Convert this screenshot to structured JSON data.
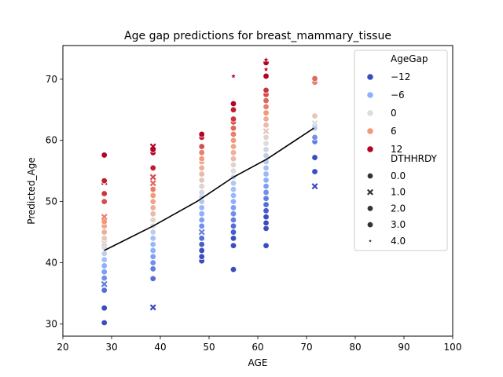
{
  "chart_data": {
    "type": "scatter",
    "title": "Age gap predictions for breast_mammary_tissue",
    "xlabel": "AGE",
    "ylabel": "Predicted_Age",
    "xlim": [
      20,
      100
    ],
    "ylim": [
      28,
      75.5
    ],
    "xticks": [
      "20",
      "30",
      "40",
      "50",
      "60",
      "70",
      "80",
      "90",
      "100"
    ],
    "yticks": [
      "30",
      "40",
      "50",
      "60",
      "70"
    ],
    "hue": {
      "title": "AgeGap",
      "entries": [
        {
          "label": "−12",
          "color": "#3b4cc0"
        },
        {
          "label": "−6",
          "color": "#8db0fe"
        },
        {
          "label": "0",
          "color": "#dddddd"
        },
        {
          "label": "6",
          "color": "#f4987a"
        },
        {
          "label": "12",
          "color": "#b40426"
        }
      ]
    },
    "style": {
      "title": "DTHHRDY",
      "entries": [
        {
          "label": "0.0",
          "marker": "circle"
        },
        {
          "label": "1.0",
          "marker": "x"
        },
        {
          "label": "2.0",
          "marker": "square"
        },
        {
          "label": "3.0",
          "marker": "plus"
        },
        {
          "label": "4.0",
          "marker": "star"
        }
      ]
    },
    "legend_position": "top-right",
    "trend_line": {
      "x": [
        28.5,
        38.5,
        47.5,
        55,
        62,
        71.5
      ],
      "y": [
        42,
        46,
        50,
        54,
        57,
        62
      ]
    },
    "points": [
      {
        "x": 28.5,
        "y": 30.2,
        "gap": -14,
        "m": 0
      },
      {
        "x": 28.5,
        "y": 32.6,
        "gap": -13,
        "m": 0
      },
      {
        "x": 28.5,
        "y": 35.5,
        "gap": -10,
        "m": 0
      },
      {
        "x": 28.5,
        "y": 36.5,
        "gap": -9,
        "m": 1
      },
      {
        "x": 28.5,
        "y": 37.5,
        "gap": -8,
        "m": 0
      },
      {
        "x": 28.5,
        "y": 38.5,
        "gap": -7,
        "m": 0
      },
      {
        "x": 28.5,
        "y": 39.5,
        "gap": -6,
        "m": 0
      },
      {
        "x": 28.5,
        "y": 40.5,
        "gap": -4,
        "m": 0
      },
      {
        "x": 28.5,
        "y": 41.5,
        "gap": -2,
        "m": 0
      },
      {
        "x": 28.5,
        "y": 42.5,
        "gap": 0,
        "m": 0
      },
      {
        "x": 28.5,
        "y": 43.2,
        "gap": 1,
        "m": 1
      },
      {
        "x": 28.5,
        "y": 44,
        "gap": 2,
        "m": 0
      },
      {
        "x": 28.5,
        "y": 45,
        "gap": 4,
        "m": 0
      },
      {
        "x": 28.5,
        "y": 46,
        "gap": 5,
        "m": 0
      },
      {
        "x": 28.5,
        "y": 46.7,
        "gap": 6,
        "m": 0
      },
      {
        "x": 28.5,
        "y": 47.5,
        "gap": 7,
        "m": 1
      },
      {
        "x": 28.5,
        "y": 50,
        "gap": 9,
        "m": 0
      },
      {
        "x": 28.5,
        "y": 51.3,
        "gap": 10,
        "m": 0
      },
      {
        "x": 28.5,
        "y": 53.2,
        "gap": 13,
        "m": 1
      },
      {
        "x": 28.5,
        "y": 53.4,
        "gap": 11,
        "m": 0
      },
      {
        "x": 28.5,
        "y": 57.6,
        "gap": 15,
        "m": 0
      },
      {
        "x": 38.5,
        "y": 32.7,
        "gap": -14,
        "m": 1
      },
      {
        "x": 38.5,
        "y": 37.4,
        "gap": -10,
        "m": 0
      },
      {
        "x": 38.5,
        "y": 39,
        "gap": -9,
        "m": 0
      },
      {
        "x": 38.5,
        "y": 40,
        "gap": -8,
        "m": 0
      },
      {
        "x": 38.5,
        "y": 41,
        "gap": -7,
        "m": 0
      },
      {
        "x": 38.5,
        "y": 42,
        "gap": -6,
        "m": 0
      },
      {
        "x": 38.5,
        "y": 43,
        "gap": -5,
        "m": 0
      },
      {
        "x": 38.5,
        "y": 44,
        "gap": -4,
        "m": 0
      },
      {
        "x": 38.5,
        "y": 45,
        "gap": -2,
        "m": 0
      },
      {
        "x": 38.5,
        "y": 46,
        "gap": 0,
        "m": 0
      },
      {
        "x": 38.5,
        "y": 47,
        "gap": 1,
        "m": 0
      },
      {
        "x": 38.5,
        "y": 48,
        "gap": 3,
        "m": 0
      },
      {
        "x": 38.5,
        "y": 49,
        "gap": 4,
        "m": 0
      },
      {
        "x": 38.5,
        "y": 50,
        "gap": 5,
        "m": 0
      },
      {
        "x": 38.5,
        "y": 51,
        "gap": 6,
        "m": 0
      },
      {
        "x": 38.5,
        "y": 52,
        "gap": 7,
        "m": 0
      },
      {
        "x": 38.5,
        "y": 53,
        "gap": 8,
        "m": 1
      },
      {
        "x": 38.5,
        "y": 54,
        "gap": 9,
        "m": 1
      },
      {
        "x": 38.5,
        "y": 55.5,
        "gap": 11,
        "m": 0
      },
      {
        "x": 38.5,
        "y": 58,
        "gap": 14,
        "m": 0
      },
      {
        "x": 38.5,
        "y": 58.5,
        "gap": 14,
        "m": 0
      },
      {
        "x": 38.5,
        "y": 59,
        "gap": 15,
        "m": 1
      },
      {
        "x": 48.5,
        "y": 40.3,
        "gap": -14,
        "m": 0
      },
      {
        "x": 48.5,
        "y": 41,
        "gap": -13,
        "m": 0
      },
      {
        "x": 48.5,
        "y": 42,
        "gap": -12,
        "m": 0
      },
      {
        "x": 48.5,
        "y": 43,
        "gap": -11,
        "m": 0
      },
      {
        "x": 48.5,
        "y": 44,
        "gap": -10,
        "m": 0
      },
      {
        "x": 48.5,
        "y": 45,
        "gap": -9,
        "m": 1
      },
      {
        "x": 48.5,
        "y": 46,
        "gap": -8,
        "m": 0
      },
      {
        "x": 48.5,
        "y": 47,
        "gap": -7,
        "m": 0
      },
      {
        "x": 48.5,
        "y": 48,
        "gap": -6,
        "m": 0
      },
      {
        "x": 48.5,
        "y": 49,
        "gap": -5,
        "m": 0
      },
      {
        "x": 48.5,
        "y": 50,
        "gap": -3,
        "m": 0
      },
      {
        "x": 48.5,
        "y": 50.8,
        "gap": -2,
        "m": 0
      },
      {
        "x": 48.5,
        "y": 51.5,
        "gap": -1,
        "m": 0
      },
      {
        "x": 48.5,
        "y": 52.5,
        "gap": 1,
        "m": 0
      },
      {
        "x": 48.5,
        "y": 53.5,
        "gap": 2,
        "m": 0
      },
      {
        "x": 48.5,
        "y": 54.5,
        "gap": 3,
        "m": 0
      },
      {
        "x": 48.5,
        "y": 55.5,
        "gap": 4,
        "m": 0
      },
      {
        "x": 48.5,
        "y": 56.5,
        "gap": 5,
        "m": 0
      },
      {
        "x": 48.5,
        "y": 57,
        "gap": 6,
        "m": 0
      },
      {
        "x": 48.5,
        "y": 58,
        "gap": 7,
        "m": 0
      },
      {
        "x": 48.5,
        "y": 59,
        "gap": 9,
        "m": 0
      },
      {
        "x": 48.5,
        "y": 60.5,
        "gap": 11,
        "m": 0
      },
      {
        "x": 48.5,
        "y": 61,
        "gap": 12,
        "m": 0
      },
      {
        "x": 55,
        "y": 38.9,
        "gap": -16,
        "m": 0
      },
      {
        "x": 55,
        "y": 42.8,
        "gap": -13,
        "m": 0
      },
      {
        "x": 55,
        "y": 44,
        "gap": -12,
        "m": 0
      },
      {
        "x": 55,
        "y": 45,
        "gap": -11,
        "m": 0
      },
      {
        "x": 55,
        "y": 46,
        "gap": -10,
        "m": 0
      },
      {
        "x": 55,
        "y": 47,
        "gap": -9,
        "m": 0
      },
      {
        "x": 55,
        "y": 48,
        "gap": -8,
        "m": 0
      },
      {
        "x": 55,
        "y": 49,
        "gap": -7,
        "m": 0
      },
      {
        "x": 55,
        "y": 50,
        "gap": -6,
        "m": 0
      },
      {
        "x": 55,
        "y": 51,
        "gap": -5,
        "m": 0
      },
      {
        "x": 55,
        "y": 52,
        "gap": -4,
        "m": 0
      },
      {
        "x": 55,
        "y": 53,
        "gap": -3,
        "m": 0
      },
      {
        "x": 55,
        "y": 54,
        "gap": -1,
        "m": 0
      },
      {
        "x": 55,
        "y": 55,
        "gap": 0,
        "m": 0
      },
      {
        "x": 55,
        "y": 56,
        "gap": 1,
        "m": 0
      },
      {
        "x": 55,
        "y": 57,
        "gap": 3,
        "m": 0
      },
      {
        "x": 55,
        "y": 58,
        "gap": 4,
        "m": 0
      },
      {
        "x": 55,
        "y": 59,
        "gap": 5,
        "m": 0
      },
      {
        "x": 55,
        "y": 60,
        "gap": 6,
        "m": 0
      },
      {
        "x": 55,
        "y": 61,
        "gap": 7,
        "m": 0
      },
      {
        "x": 55,
        "y": 62,
        "gap": 8,
        "m": 0
      },
      {
        "x": 55,
        "y": 63,
        "gap": 9,
        "m": 0
      },
      {
        "x": 55,
        "y": 63.5,
        "gap": 10,
        "m": 0
      },
      {
        "x": 55,
        "y": 65,
        "gap": 11,
        "m": 0
      },
      {
        "x": 55,
        "y": 66,
        "gap": 12,
        "m": 0
      },
      {
        "x": 55,
        "y": 70.5,
        "gap": 16,
        "m": 4
      },
      {
        "x": 61.7,
        "y": 42.8,
        "gap": -15,
        "m": 0
      },
      {
        "x": 61.7,
        "y": 45.6,
        "gap": -14,
        "m": 0
      },
      {
        "x": 61.7,
        "y": 46.5,
        "gap": -13,
        "m": 0
      },
      {
        "x": 61.7,
        "y": 47.5,
        "gap": -12,
        "m": 0
      },
      {
        "x": 61.7,
        "y": 48.5,
        "gap": -11,
        "m": 0
      },
      {
        "x": 61.7,
        "y": 49.5,
        "gap": -10,
        "m": 0
      },
      {
        "x": 61.7,
        "y": 50.5,
        "gap": -9,
        "m": 0
      },
      {
        "x": 61.7,
        "y": 51.5,
        "gap": -8,
        "m": 0
      },
      {
        "x": 61.7,
        "y": 52.5,
        "gap": -7,
        "m": 0
      },
      {
        "x": 61.7,
        "y": 53.5,
        "gap": -6,
        "m": 0
      },
      {
        "x": 61.7,
        "y": 54.5,
        "gap": -5,
        "m": 0
      },
      {
        "x": 61.7,
        "y": 55.5,
        "gap": -4,
        "m": 0
      },
      {
        "x": 61.7,
        "y": 56.5,
        "gap": -3,
        "m": 0
      },
      {
        "x": 61.7,
        "y": 57.5,
        "gap": -2,
        "m": 0
      },
      {
        "x": 61.7,
        "y": 58.5,
        "gap": -1,
        "m": 0
      },
      {
        "x": 61.7,
        "y": 59.5,
        "gap": 0,
        "m": 0
      },
      {
        "x": 61.7,
        "y": 60.5,
        "gap": 1,
        "m": 0
      },
      {
        "x": 61.7,
        "y": 61.5,
        "gap": 2,
        "m": 1
      },
      {
        "x": 61.7,
        "y": 62.5,
        "gap": 3,
        "m": 0
      },
      {
        "x": 61.7,
        "y": 63.5,
        "gap": 4,
        "m": 0
      },
      {
        "x": 61.7,
        "y": 64.5,
        "gap": 6,
        "m": 0
      },
      {
        "x": 61.7,
        "y": 65.5,
        "gap": 7,
        "m": 0
      },
      {
        "x": 61.7,
        "y": 66.5,
        "gap": 8,
        "m": 0
      },
      {
        "x": 61.7,
        "y": 67.5,
        "gap": 9,
        "m": 0
      },
      {
        "x": 61.7,
        "y": 68.2,
        "gap": 10,
        "m": 0
      },
      {
        "x": 61.7,
        "y": 70.5,
        "gap": 13,
        "m": 0
      },
      {
        "x": 61.7,
        "y": 71.6,
        "gap": 14,
        "m": 4
      },
      {
        "x": 61.7,
        "y": 72.7,
        "gap": 15,
        "m": 0
      },
      {
        "x": 61.7,
        "y": 73.2,
        "gap": 15,
        "m": 4
      },
      {
        "x": 71.7,
        "y": 52.5,
        "gap": -15,
        "m": 1
      },
      {
        "x": 71.7,
        "y": 54.9,
        "gap": -14,
        "m": 0
      },
      {
        "x": 71.7,
        "y": 57.2,
        "gap": -12,
        "m": 0
      },
      {
        "x": 71.7,
        "y": 59.8,
        "gap": -9,
        "m": 0
      },
      {
        "x": 71.7,
        "y": 60.5,
        "gap": -8,
        "m": 0
      },
      {
        "x": 71.7,
        "y": 62,
        "gap": -3,
        "m": 0
      },
      {
        "x": 71.7,
        "y": 62.8,
        "gap": 0,
        "m": 1
      },
      {
        "x": 71.7,
        "y": 64,
        "gap": 2,
        "m": 0
      },
      {
        "x": 71.7,
        "y": 69.5,
        "gap": 7,
        "m": 0
      },
      {
        "x": 71.7,
        "y": 70.1,
        "gap": 8,
        "m": 0
      }
    ]
  }
}
